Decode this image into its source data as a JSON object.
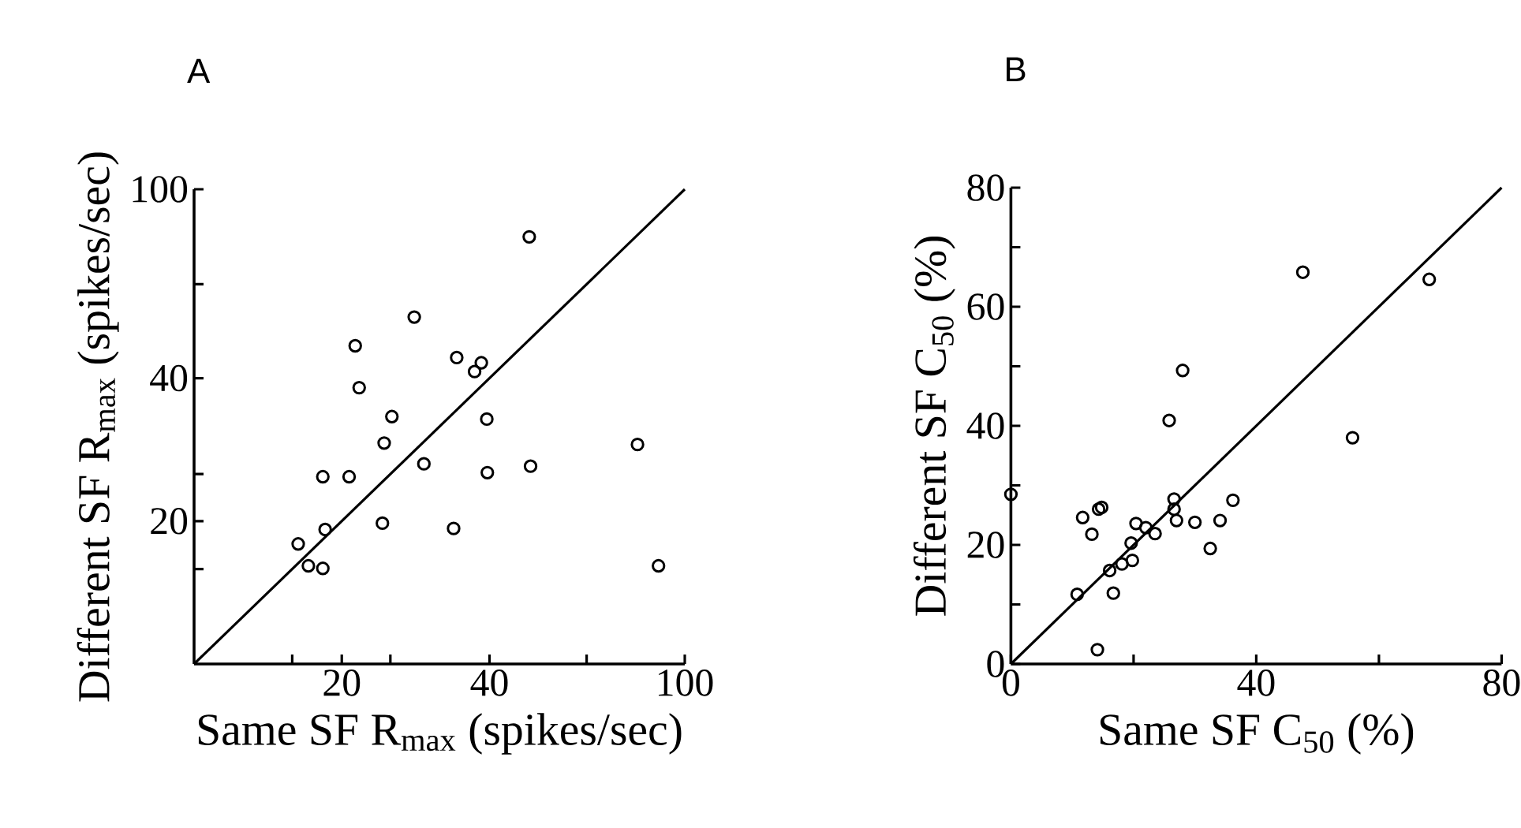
{
  "chart_data": [
    {
      "type": "scatter",
      "title": "A",
      "xlabel": "Same SF R$_{max}$ (spikes/sec)",
      "ylabel": "Different SF R$_{max}$ (spikes/sec)",
      "log": "xy",
      "xlim": [
        10,
        100
      ],
      "ylim": [
        10,
        100
      ],
      "xticks": [
        {
          "value": 15.85,
          "label": null
        },
        20,
        {
          "value": 25.12,
          "label": null
        },
        40,
        {
          "value": 63.1,
          "label": null
        },
        100
      ],
      "yticks": [
        {
          "value": 15.85,
          "label": null
        },
        20,
        {
          "value": 25.12,
          "label": null
        },
        40,
        {
          "value": 63.1,
          "label": null
        },
        100
      ],
      "series": [
        {
          "marker": "circle",
          "color": "#000000",
          "x": [
            48.2,
            28.1,
            21.3,
            34.3,
            38.5,
            37.3,
            21.7,
            25.3,
            39.5,
            24.4,
            80.1,
            29.4,
            48.5,
            18.3,
            20.7,
            39.6,
            24.2,
            33.8,
            18.5,
            16.3,
            17.1,
            18.3,
            88.4
          ],
          "values": [
            79.4,
            53.8,
            46.8,
            44.2,
            43.1,
            41.3,
            38.2,
            33.2,
            32.8,
            29.2,
            29.0,
            26.4,
            26.1,
            24.8,
            24.8,
            25.3,
            19.8,
            19.3,
            19.2,
            17.9,
            16.1,
            15.9,
            16.1
          ]
        },
        {
          "type": "line",
          "marker": "none",
          "color": "#000000",
          "x": [
            10,
            100
          ],
          "values": [
            10,
            100
          ]
        }
      ]
    },
    {
      "type": "scatter",
      "title": "B",
      "xlabel": "Same SF C$_{50}$ (%)",
      "ylabel": "Different SF C$_{50}$ (%)",
      "xlim": [
        0,
        80
      ],
      "ylim": [
        0,
        80
      ],
      "xticks": [
        0,
        {
          "value": 20,
          "label": null
        },
        40,
        {
          "value": 60,
          "label": null
        },
        80
      ],
      "yticks": [
        0,
        {
          "value": 10,
          "label": null
        },
        20,
        {
          "value": 30,
          "label": null
        },
        40,
        {
          "value": 50,
          "label": null
        },
        60,
        {
          "value": 70,
          "label": null
        },
        80
      ],
      "series": [
        {
          "marker": "circle",
          "color": "#000000",
          "x": [
            47.6,
            68.2,
            28.0,
            25.8,
            55.7,
            0,
            36.2,
            26.6,
            26.6,
            14.8,
            14.3,
            11.7,
            13.2,
            27.0,
            30.0,
            34.1,
            20.4,
            22.0,
            23.5,
            19.6,
            32.5,
            19.8,
            18.1,
            16.1,
            16.7,
            10.8,
            14.1
          ],
          "values": [
            65.8,
            64.6,
            49.3,
            40.9,
            38.0,
            28.5,
            27.5,
            27.7,
            26.0,
            26.3,
            26.0,
            24.6,
            21.8,
            24.1,
            23.8,
            24.1,
            23.6,
            22.9,
            21.9,
            20.3,
            19.4,
            17.4,
            16.8,
            15.7,
            11.9,
            11.7,
            2.4
          ]
        },
        {
          "type": "line",
          "marker": "none",
          "color": "#000000",
          "x": [
            0,
            80
          ],
          "values": [
            0,
            80
          ]
        }
      ]
    }
  ]
}
